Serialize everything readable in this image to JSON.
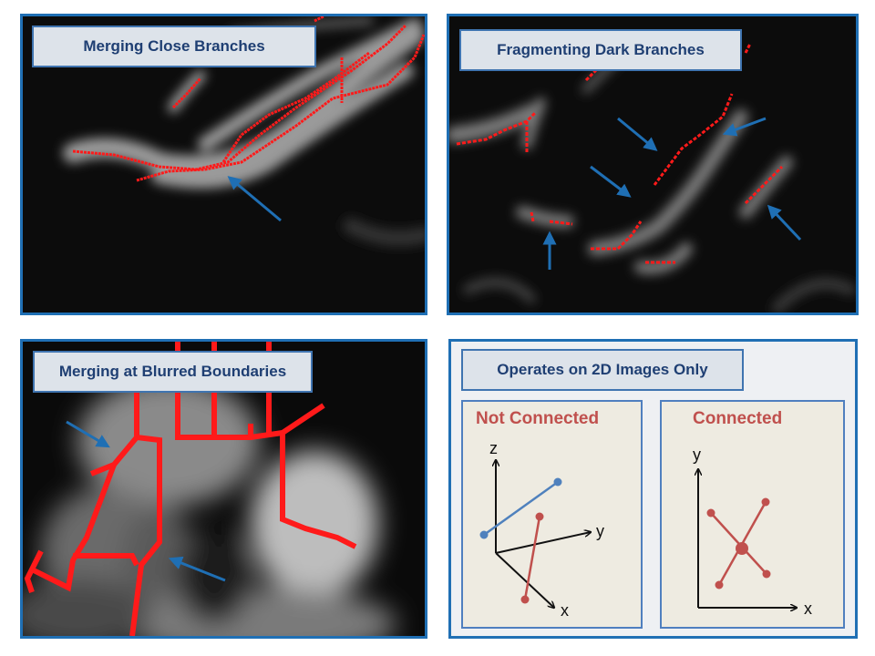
{
  "panels": {
    "merging_close": {
      "caption": "Merging Close Branches"
    },
    "fragmenting_dark": {
      "caption": "Fragmenting Dark Branches"
    },
    "merging_blurred": {
      "caption": "Merging at Blurred Boundaries"
    },
    "operates_2d": {
      "caption": "Operates on 2D Images Only",
      "not_connected": {
        "title": "Not Connected",
        "axis_z": "z",
        "axis_y": "y",
        "axis_x": "x"
      },
      "connected": {
        "title": "Connected",
        "axis_y": "y",
        "axis_x": "x"
      }
    }
  },
  "colors": {
    "skeleton": "#ff1a1a",
    "arrow": "#1f6fb4",
    "panel_border": "#1f6fb4",
    "caption_bg": "#dde3ea",
    "blue_segment": "#4f81bd",
    "red_segment": "#c0504d"
  },
  "icons": [
    "arrow-icon"
  ]
}
